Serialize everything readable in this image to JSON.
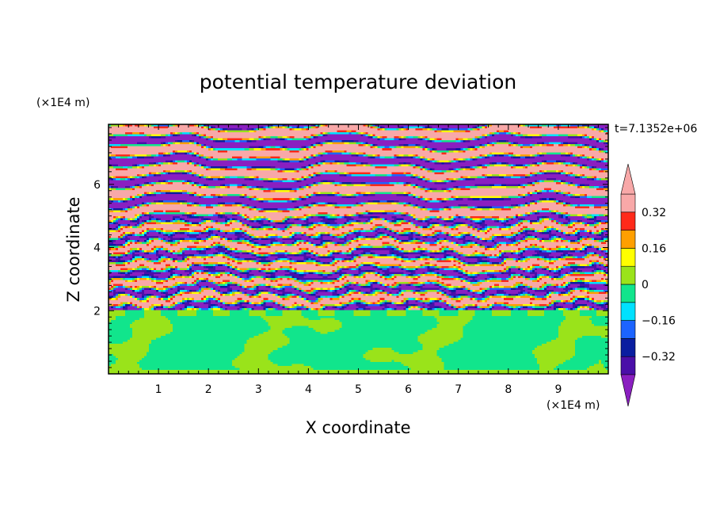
{
  "chart_data": {
    "type": "heatmap",
    "title": "potential temperature deviation",
    "xlabel": "X coordinate",
    "ylabel": "Z coordinate",
    "x_unit": "(×1E4 m)",
    "y_unit": "(×1E4 m)",
    "time_label": "t=7.1352e+06",
    "xlim": [
      0,
      10
    ],
    "ylim": [
      0,
      7.9
    ],
    "x_ticks": [
      1,
      2,
      3,
      4,
      5,
      6,
      7,
      8,
      9
    ],
    "y_ticks": [
      2,
      4,
      6
    ],
    "colorbar": {
      "levels": [
        -0.4,
        -0.32,
        -0.24,
        -0.16,
        -0.08,
        0,
        0.08,
        0.16,
        0.24,
        0.32,
        0.4
      ],
      "colors": [
        "#8a1fc0",
        "#4a0fa8",
        "#0a1ea0",
        "#1c64ff",
        "#00e1ff",
        "#11e58c",
        "#9ae31a",
        "#ffff00",
        "#ff9f00",
        "#ff2a1a",
        "#f8a8a8"
      ],
      "labels": [
        {
          "value": 0.32,
          "text": "0.32"
        },
        {
          "value": 0.16,
          "text": "0.16"
        },
        {
          "value": 0,
          "text": "0"
        },
        {
          "value": -0.16,
          "text": "−0.16"
        },
        {
          "value": -0.32,
          "text": "−0.32"
        }
      ],
      "extend": "both"
    },
    "field_description": {
      "lower_layer": {
        "z_range": [
          0,
          2
        ],
        "dominant_values": [
          -0.04,
          0.04
        ]
      },
      "mixed_layer": {
        "z_range": [
          2,
          5
        ],
        "dominant_values": [
          -0.4,
          0.4
        ]
      },
      "upper_layer": {
        "z_range": [
          5,
          7.9
        ],
        "dominant_values": [
          -0.4,
          0.4
        ]
      }
    }
  }
}
